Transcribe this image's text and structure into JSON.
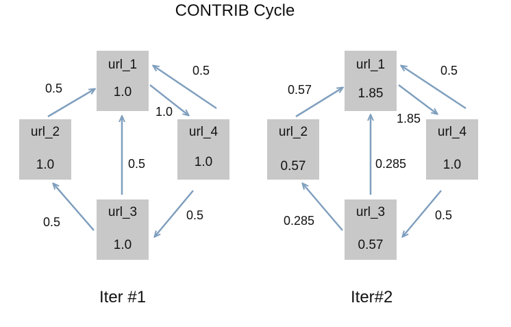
{
  "title": "CONTRIB Cycle",
  "colors": {
    "node_fill": "#c8c8c8",
    "arrow": "#7f9fbe"
  },
  "iterations": [
    {
      "label": "Iter #1",
      "nodes": [
        {
          "name": "url_1",
          "value": "1.0"
        },
        {
          "name": "url_2",
          "value": "1.0"
        },
        {
          "name": "url_3",
          "value": "1.0"
        },
        {
          "name": "url_4",
          "value": "1.0"
        }
      ],
      "edges": [
        {
          "from": "url_2",
          "to": "url_1",
          "weight": "0.5"
        },
        {
          "from": "url_1",
          "to": "url_4",
          "weight": "1.0"
        },
        {
          "from": "url_4",
          "to": "url_1",
          "weight": "0.5"
        },
        {
          "from": "url_3",
          "to": "url_1",
          "weight": "0.5"
        },
        {
          "from": "url_3",
          "to": "url_2",
          "weight": "0.5"
        },
        {
          "from": "url_4",
          "to": "url_3",
          "weight": "0.5"
        }
      ]
    },
    {
      "label": "Iter#2",
      "nodes": [
        {
          "name": "url_1",
          "value": "1.85"
        },
        {
          "name": "url_2",
          "value": "0.57"
        },
        {
          "name": "url_3",
          "value": "0.57"
        },
        {
          "name": "url_4",
          "value": "1.0"
        }
      ],
      "edges": [
        {
          "from": "url_2",
          "to": "url_1",
          "weight": "0.57"
        },
        {
          "from": "url_1",
          "to": "url_4",
          "weight": "1.85"
        },
        {
          "from": "url_4",
          "to": "url_1",
          "weight": "0.5"
        },
        {
          "from": "url_3",
          "to": "url_1",
          "weight": "0.285"
        },
        {
          "from": "url_3",
          "to": "url_2",
          "weight": "0.285"
        },
        {
          "from": "url_4",
          "to": "url_3",
          "weight": "0.5"
        }
      ]
    }
  ]
}
